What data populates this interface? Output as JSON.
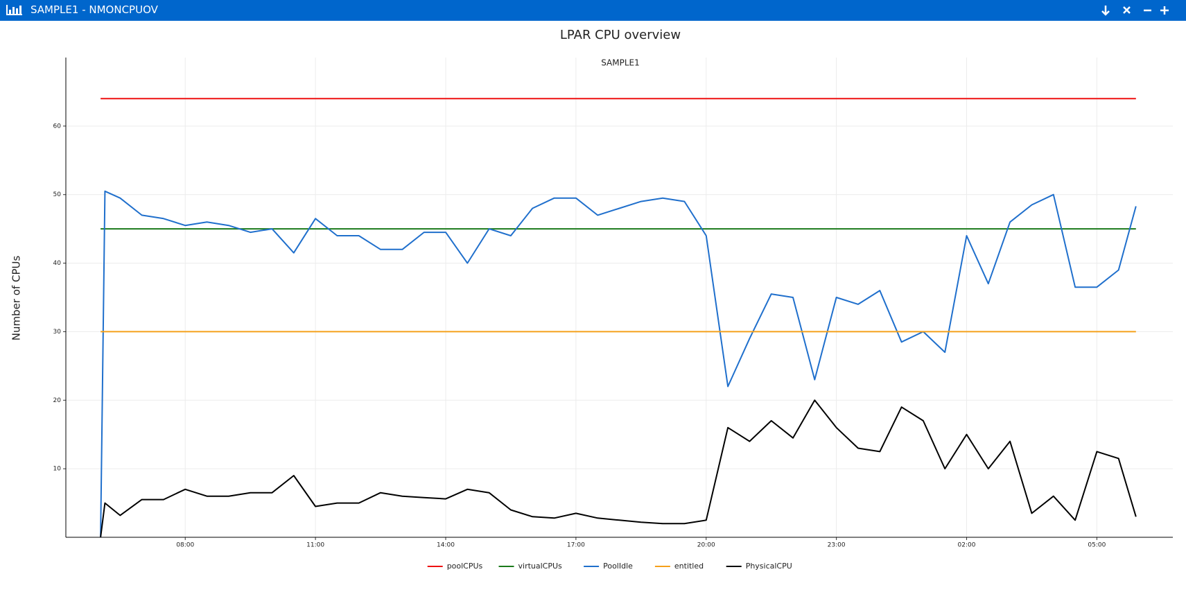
{
  "window": {
    "title": "SAMPLE1 - NMONCPUOV"
  },
  "chart_data": {
    "type": "line",
    "title": "LPAR CPU overview",
    "subtitle": "SAMPLE1",
    "ylabel": "Number of CPUs",
    "x": [
      6.05,
      6.15,
      6.5,
      7,
      7.5,
      8,
      8.5,
      9,
      9.5,
      10,
      10.5,
      11,
      11.5,
      12,
      12.5,
      13,
      13.5,
      14,
      14.5,
      15,
      15.5,
      16,
      16.5,
      17,
      17.5,
      18,
      18.5,
      19,
      19.5,
      20,
      20.5,
      21,
      21.5,
      22,
      22.5,
      23,
      23.5,
      24,
      24.5,
      25,
      25.5,
      26,
      26.5,
      27,
      27.5,
      28,
      28.5,
      29,
      29.5,
      29.9
    ],
    "xlim": [
      5.25,
      30.75
    ],
    "xticks": [
      {
        "value": 8,
        "label": "08:00"
      },
      {
        "value": 11,
        "label": "11:00"
      },
      {
        "value": 14,
        "label": "14:00"
      },
      {
        "value": 17,
        "label": "17:00"
      },
      {
        "value": 20,
        "label": "20:00"
      },
      {
        "value": 23,
        "label": "23:00"
      },
      {
        "value": 26,
        "label": "02:00"
      },
      {
        "value": 29,
        "label": "05:00"
      }
    ],
    "ylim": [
      0,
      70
    ],
    "yticks": [
      10,
      20,
      30,
      40,
      50,
      60
    ],
    "grid": true,
    "legend": "bottom",
    "series": [
      {
        "name": "poolCPUs",
        "color": "#ee1111",
        "x": [
          6.05,
          29.9
        ],
        "values": [
          64,
          64
        ]
      },
      {
        "name": "virtualCPUs",
        "color": "#1a7a1a",
        "x": [
          6.05,
          29.9
        ],
        "values": [
          45,
          45
        ]
      },
      {
        "name": "PoolIdle",
        "color": "#1f6fcc",
        "values": [
          0,
          50.5,
          49.5,
          47,
          46.5,
          45.5,
          46,
          45.5,
          44.5,
          45,
          41.5,
          46.5,
          44,
          44,
          42,
          42,
          44.5,
          44.5,
          40,
          45,
          44,
          48,
          49.5,
          49.5,
          47,
          48,
          49,
          49.5,
          49,
          44,
          22,
          29,
          35.5,
          35,
          23,
          35,
          34,
          36,
          28.5,
          30,
          27,
          44,
          37,
          46,
          48.5,
          50,
          36.5,
          36.5,
          39,
          48.3
        ]
      },
      {
        "name": "entitled",
        "color": "#f5a01a",
        "x": [
          6.05,
          29.9
        ],
        "values": [
          30,
          30
        ]
      },
      {
        "name": "PhysicalCPU",
        "color": "#000000",
        "values": [
          0,
          5,
          3.2,
          5.5,
          5.5,
          7,
          6,
          6,
          6.5,
          6.5,
          9,
          4.5,
          5,
          5,
          6.5,
          6,
          5.8,
          5.6,
          7,
          6.5,
          4,
          3,
          2.8,
          3.5,
          2.8,
          2.5,
          2.2,
          2,
          2,
          2.5,
          16,
          14,
          17,
          14.5,
          20,
          16,
          13,
          12.5,
          19,
          17,
          10,
          15,
          10,
          14,
          3.5,
          6,
          2.5,
          12.5,
          11.5,
          3
        ]
      }
    ]
  }
}
